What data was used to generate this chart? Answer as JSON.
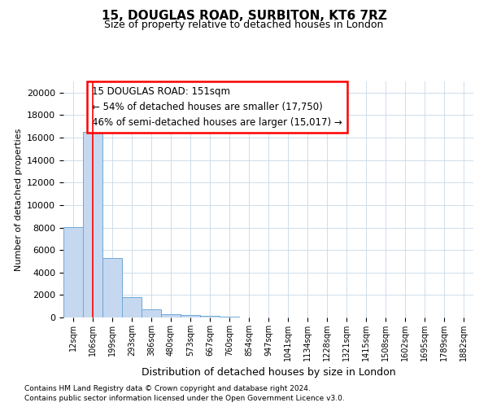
{
  "title_line1": "15, DOUGLAS ROAD, SURBITON, KT6 7RZ",
  "title_line2": "Size of property relative to detached houses in London",
  "xlabel": "Distribution of detached houses by size in London",
  "ylabel": "Number of detached properties",
  "footnote1": "Contains HM Land Registry data © Crown copyright and database right 2024.",
  "footnote2": "Contains public sector information licensed under the Open Government Licence v3.0.",
  "bin_labels": [
    "12sqm",
    "106sqm",
    "199sqm",
    "293sqm",
    "386sqm",
    "480sqm",
    "573sqm",
    "667sqm",
    "760sqm",
    "854sqm",
    "947sqm",
    "1041sqm",
    "1134sqm",
    "1228sqm",
    "1321sqm",
    "1415sqm",
    "1508sqm",
    "1602sqm",
    "1695sqm",
    "1789sqm",
    "1882sqm"
  ],
  "bar_heights": [
    8050,
    16500,
    5300,
    1800,
    750,
    300,
    250,
    150,
    80,
    0,
    0,
    0,
    0,
    0,
    0,
    0,
    0,
    0,
    0,
    0,
    0
  ],
  "bar_color": "#c5d8f0",
  "bar_edge_color": "#6fa8d8",
  "annotation_line1": "15 DOUGLAS ROAD: 151sqm",
  "annotation_line2": "← 54% of detached houses are smaller (17,750)",
  "annotation_line3": "46% of semi-detached houses are larger (15,017) →",
  "red_line_x": 1.0,
  "ylim": [
    0,
    21000
  ],
  "yticks": [
    0,
    2000,
    4000,
    6000,
    8000,
    10000,
    12000,
    14000,
    16000,
    18000,
    20000
  ],
  "background_color": "#ffffff",
  "grid_color": "#c8d8e8"
}
